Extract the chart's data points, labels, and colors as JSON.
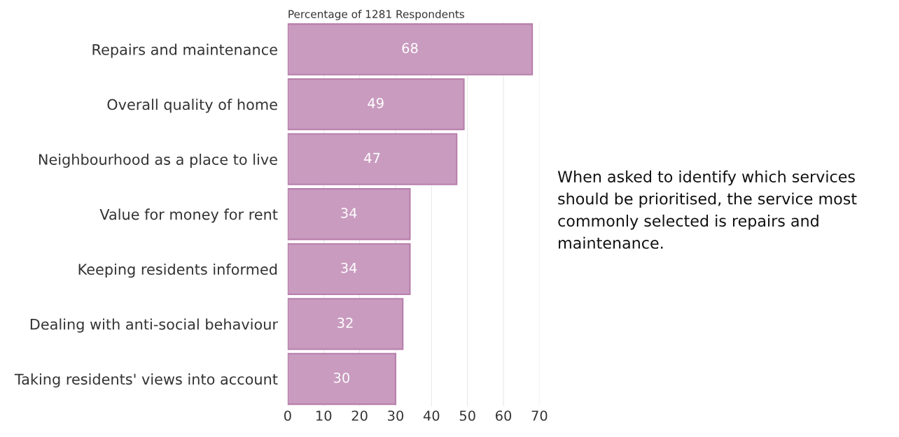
{
  "chart_data": {
    "type": "bar",
    "orientation": "horizontal",
    "xlabel": "Percentage of 1281 Respondents",
    "categories": [
      "Repairs and maintenance",
      "Overall quality of home",
      "Neighbourhood as a place to live",
      "Value for money for rent",
      "Keeping residents informed",
      "Dealing with anti-social behaviour",
      "Taking residents' views into account"
    ],
    "values": [
      68,
      49,
      47,
      34,
      34,
      32,
      30
    ],
    "color": "#c99bbf",
    "data_labels": true,
    "xlim": [
      0,
      70
    ],
    "xticks": [
      0,
      10,
      20,
      30,
      40,
      50,
      60,
      70
    ],
    "grid": "x",
    "annotations": [
      "When asked to identify which services should be prioritised, the service most commonly selected is repairs and maintenance."
    ]
  }
}
